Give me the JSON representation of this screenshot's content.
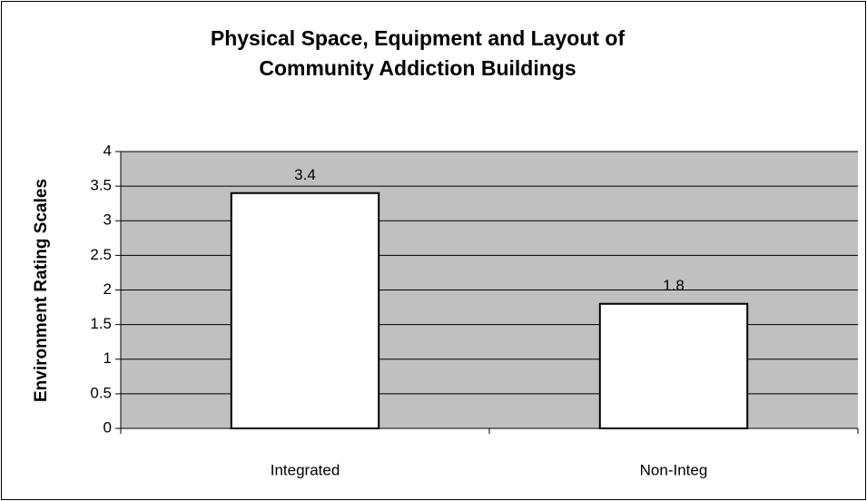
{
  "chart_data": {
    "type": "bar",
    "title": "Physical Space, Equipment and Layout of Community Addiction Buildings",
    "y_label": "Environment Rating Scales",
    "categories": [
      "Integrated",
      "Non-Integ"
    ],
    "values": [
      3.4,
      1.8
    ],
    "color": "#ffffff",
    "plot_background": "#c0c0c0",
    "ylim": [
      0,
      4
    ],
    "yticks": [
      0,
      0.5,
      1,
      1.5,
      2,
      2.5,
      3,
      3.5,
      4
    ],
    "grid": true
  }
}
